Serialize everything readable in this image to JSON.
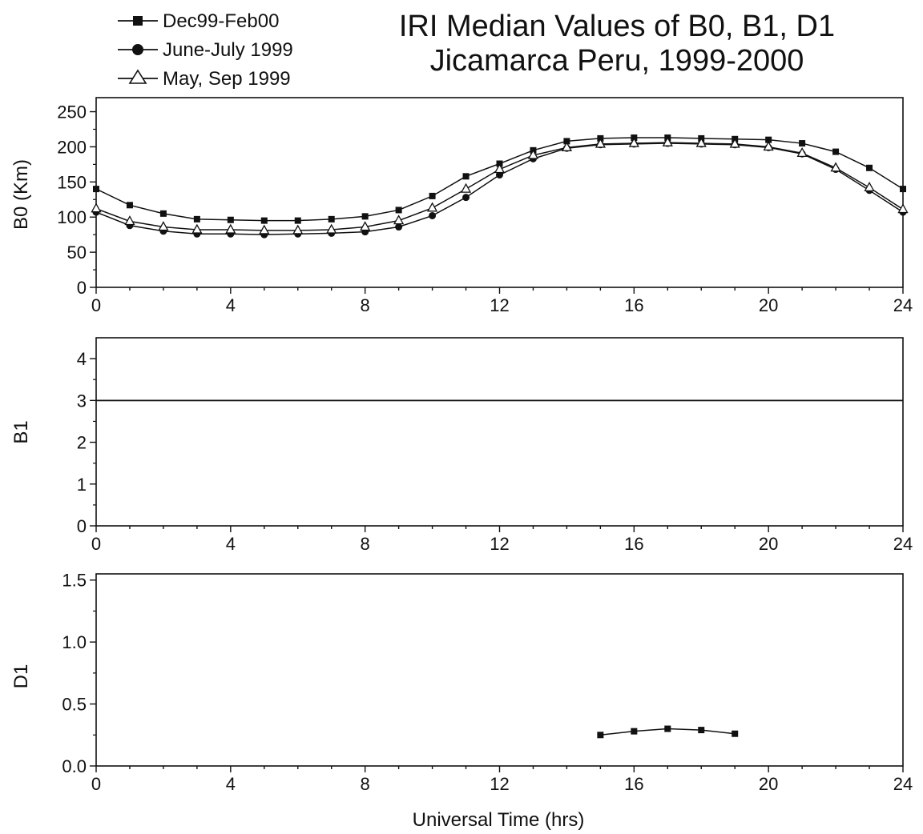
{
  "title_lines": [
    "IRI Median Values of B0, B1, D1",
    "Jicamarca Peru, 1999-2000"
  ],
  "legend": [
    {
      "label": "Dec99-Feb00",
      "marker": "square"
    },
    {
      "label": "June-July 1999",
      "marker": "circle"
    },
    {
      "label": "May, Sep 1999",
      "marker": "triangle-open"
    }
  ],
  "chart_data": [
    {
      "type": "line",
      "ylabel": "B0 (Km)",
      "xlabel": "",
      "xlim": [
        0,
        24
      ],
      "ylim": [
        0,
        270
      ],
      "xticks": [
        "0",
        "4",
        "8",
        "12",
        "16",
        "20",
        "24"
      ],
      "yticks": [
        "0",
        "50",
        "100",
        "150",
        "200",
        "250"
      ],
      "ytick_values": [
        0,
        50,
        100,
        150,
        200,
        250
      ],
      "series": [
        {
          "name": "Dec99-Feb00",
          "marker": "square",
          "x": [
            0,
            1,
            2,
            3,
            4,
            5,
            6,
            7,
            8,
            9,
            10,
            11,
            12,
            13,
            14,
            15,
            16,
            17,
            18,
            19,
            20,
            21,
            22,
            23,
            24
          ],
          "values": [
            140,
            117,
            105,
            97,
            96,
            95,
            95,
            97,
            101,
            110,
            130,
            158,
            176,
            195,
            208,
            212,
            213,
            213,
            212,
            211,
            210,
            205,
            193,
            170,
            140
          ]
        },
        {
          "name": "June-July 1999",
          "marker": "circle",
          "x": [
            0,
            1,
            2,
            3,
            4,
            5,
            6,
            7,
            8,
            9,
            10,
            11,
            12,
            13,
            14,
            15,
            16,
            17,
            18,
            19,
            20,
            21,
            22,
            23,
            24
          ],
          "values": [
            107,
            88,
            80,
            76,
            76,
            75,
            76,
            77,
            79,
            86,
            102,
            128,
            160,
            183,
            198,
            203,
            204,
            205,
            204,
            203,
            199,
            190,
            168,
            138,
            107
          ]
        },
        {
          "name": "May, Sep 1999",
          "marker": "triangle-open",
          "x": [
            0,
            1,
            2,
            3,
            4,
            5,
            6,
            7,
            8,
            9,
            10,
            11,
            12,
            13,
            14,
            15,
            16,
            17,
            18,
            19,
            20,
            21,
            22,
            23,
            24
          ],
          "values": [
            112,
            94,
            86,
            82,
            82,
            81,
            81,
            82,
            86,
            95,
            113,
            140,
            168,
            188,
            199,
            204,
            205,
            206,
            205,
            204,
            200,
            191,
            170,
            142,
            111
          ]
        }
      ]
    },
    {
      "type": "line",
      "ylabel": "B1",
      "xlabel": "",
      "xlim": [
        0,
        24
      ],
      "ylim": [
        0,
        4.5
      ],
      "xticks": [
        "0",
        "4",
        "8",
        "12",
        "16",
        "20",
        "24"
      ],
      "yticks": [
        "0",
        "1",
        "2",
        "3",
        "4"
      ],
      "ytick_values": [
        0,
        1,
        2,
        3,
        4
      ],
      "series": [
        {
          "name": "Dec99-Feb00",
          "marker": "none",
          "x": [
            0,
            24
          ],
          "values": [
            3,
            3
          ]
        },
        {
          "name": "June-July 1999",
          "marker": "none",
          "x": [
            0,
            24
          ],
          "values": [
            3,
            3
          ]
        },
        {
          "name": "May, Sep 1999",
          "marker": "none",
          "x": [
            0,
            24
          ],
          "values": [
            3,
            3
          ]
        }
      ]
    },
    {
      "type": "line",
      "ylabel": "D1",
      "xlabel": "Universal Time (hrs)",
      "xlim": [
        0,
        24
      ],
      "ylim": [
        0,
        1.55
      ],
      "xticks": [
        "0",
        "4",
        "8",
        "12",
        "16",
        "20",
        "24"
      ],
      "yticks": [
        "0.0",
        "0.5",
        "1.0",
        "1.5"
      ],
      "ytick_values": [
        0,
        0.5,
        1.0,
        1.5
      ],
      "series": [
        {
          "name": "Dec99-Feb00",
          "marker": "square",
          "x": [
            15,
            16,
            17,
            18,
            19
          ],
          "values": [
            0.25,
            0.28,
            0.3,
            0.29,
            0.26
          ]
        }
      ]
    }
  ]
}
